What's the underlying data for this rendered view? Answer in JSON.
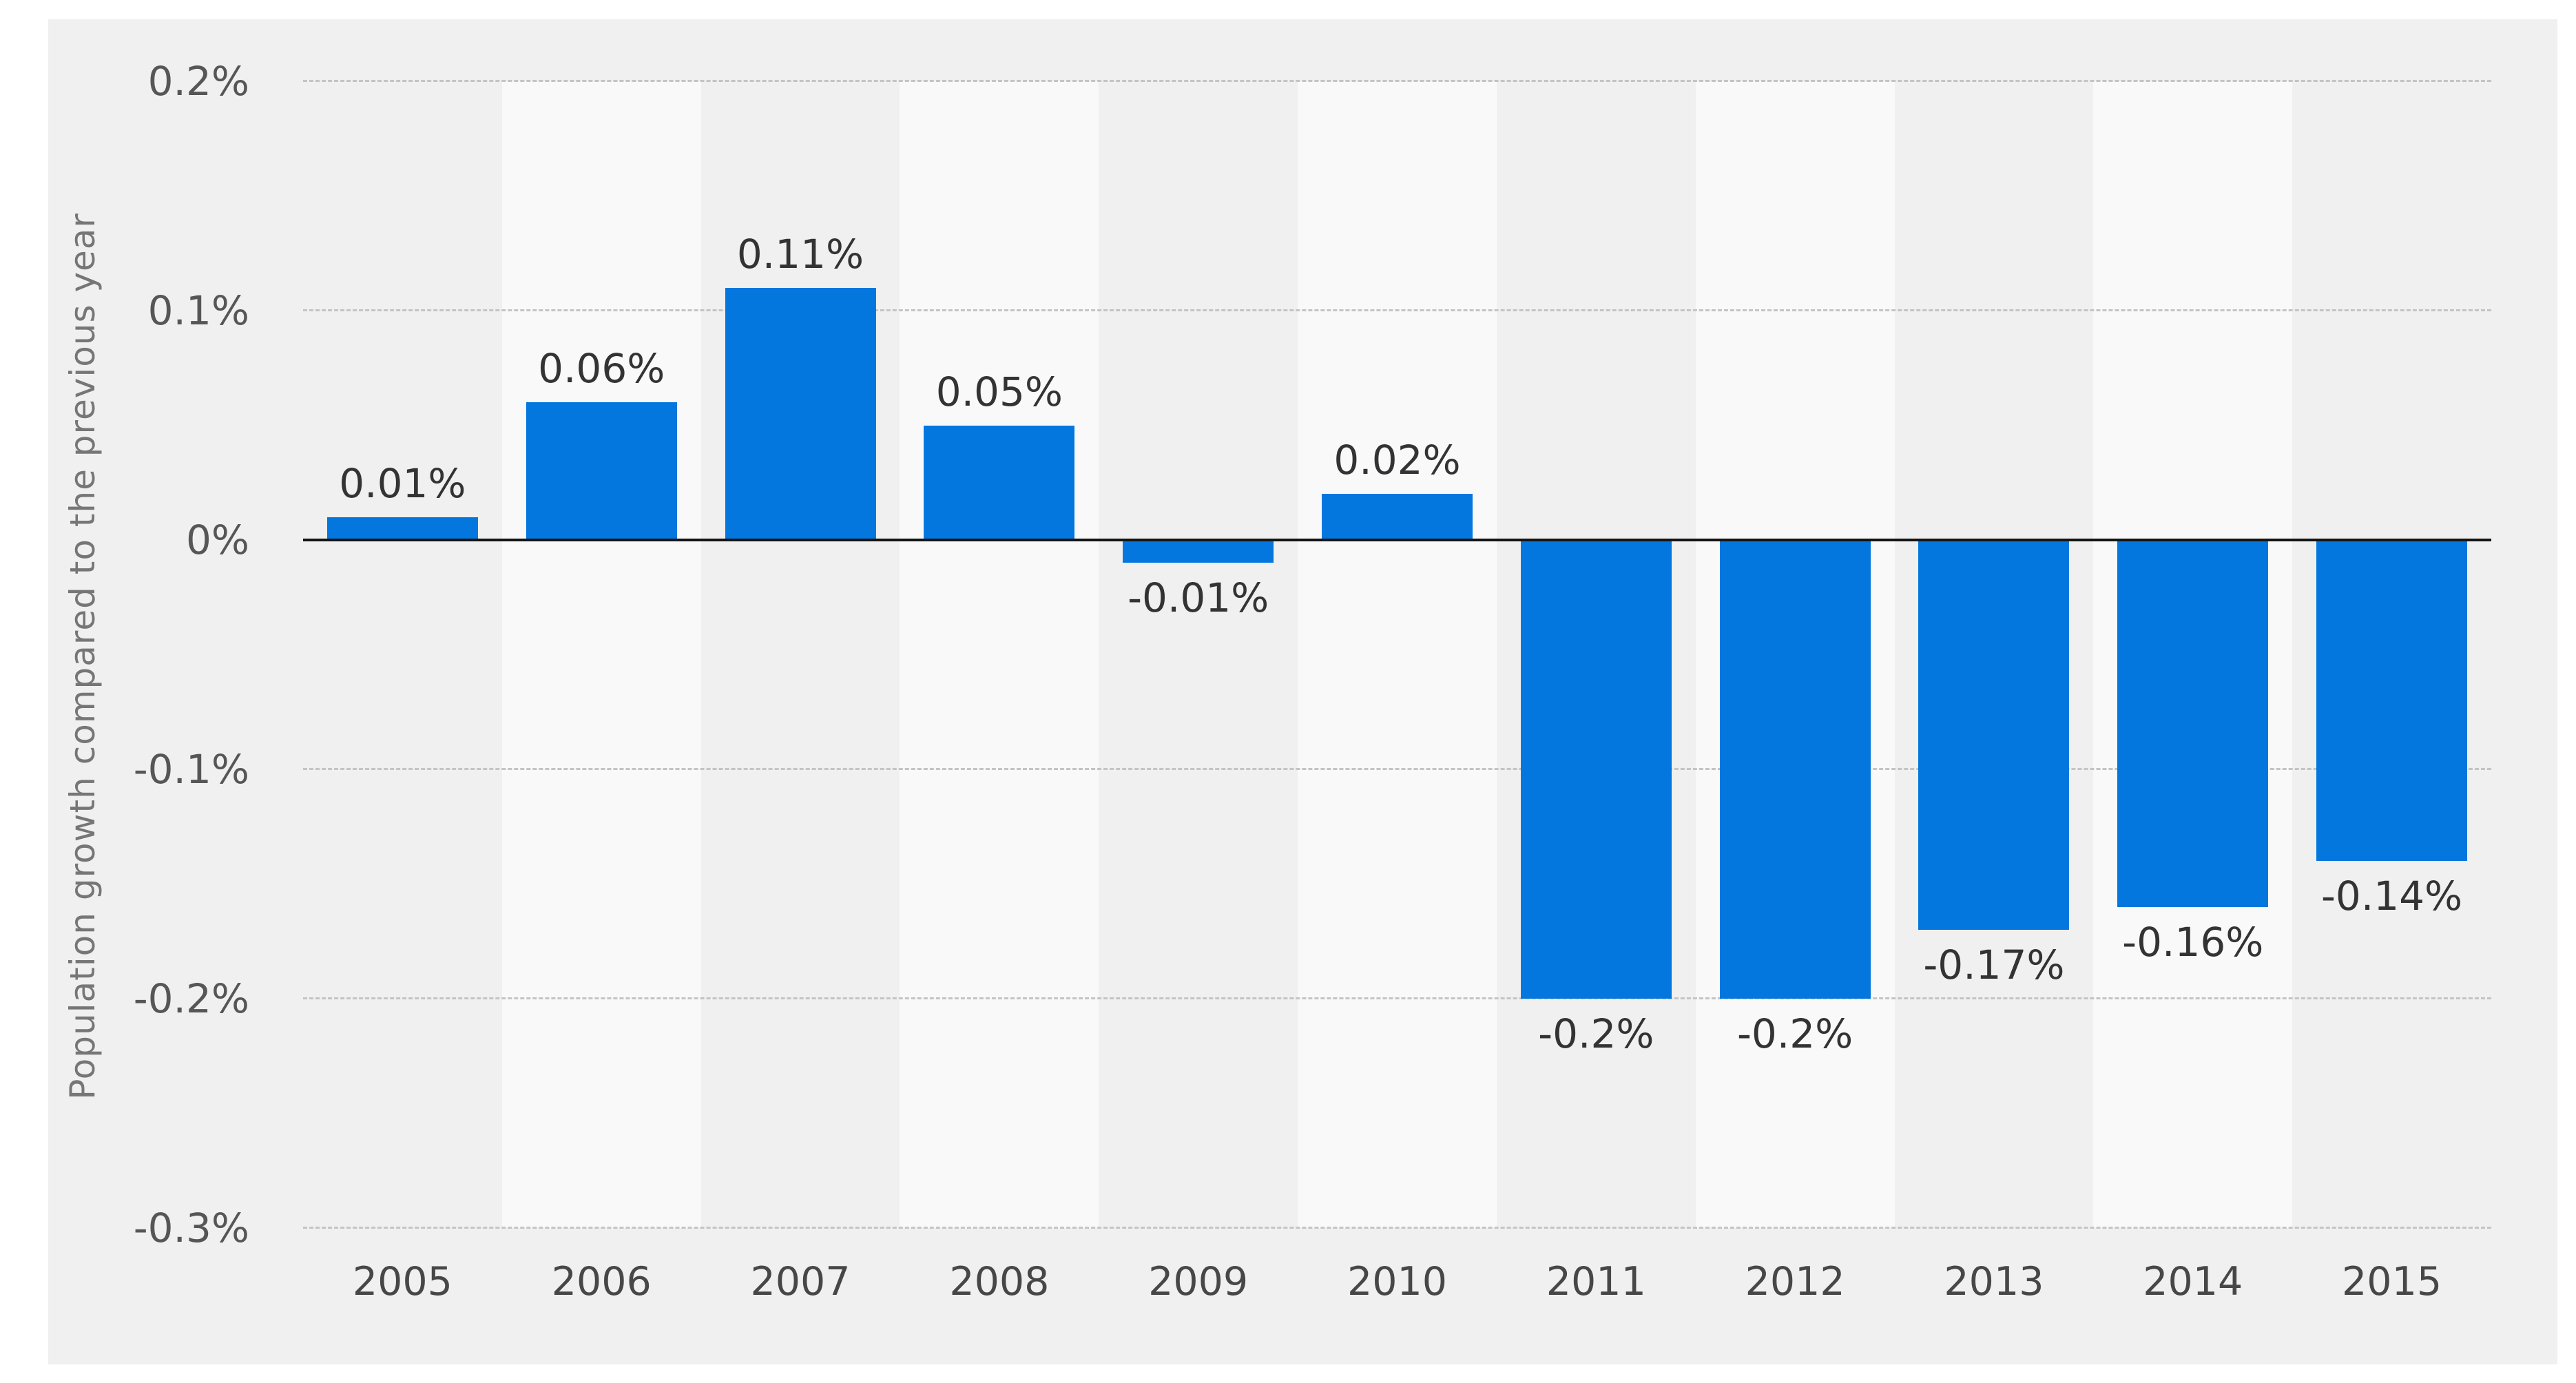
{
  "chart_data": {
    "type": "bar",
    "title": "",
    "xlabel": "",
    "ylabel": "Population growth compared to the previous year",
    "unit": "%",
    "categories": [
      "2005",
      "2006",
      "2007",
      "2008",
      "2009",
      "2010",
      "2011",
      "2012",
      "2013",
      "2014",
      "2015"
    ],
    "values": [
      0.01,
      0.06,
      0.11,
      0.05,
      -0.01,
      0.02,
      -0.2,
      -0.2,
      -0.17,
      -0.16,
      -0.14
    ],
    "value_labels": [
      "0.01%",
      "0.06%",
      "0.11%",
      "0.05%",
      "-0.01%",
      "0.02%",
      "-0.2%",
      "-0.2%",
      "-0.17%",
      "-0.16%",
      "-0.14%"
    ],
    "ylim": [
      -0.3,
      0.2
    ],
    "yticks": [
      {
        "value": 0.2,
        "label": "0.2%"
      },
      {
        "value": 0.1,
        "label": "0.1%"
      },
      {
        "value": 0,
        "label": "0%"
      },
      {
        "value": -0.1,
        "label": "-0.1%"
      },
      {
        "value": -0.2,
        "label": "-0.2%"
      },
      {
        "value": -0.3,
        "label": "-0.3%"
      }
    ],
    "grid": "horizontal-dashed",
    "legend": "none",
    "colors": {
      "bar": "#0377de",
      "outer_background": "#ffffff",
      "panel_background": "#f0f0f0",
      "stripe_background": "#f9f9f9",
      "gridline": "#c4c4c4",
      "zero_line": "#141414",
      "tick_text": "#565656",
      "year_text": "#474747",
      "value_text": "#333333",
      "axis_title_text": "#767676"
    }
  }
}
